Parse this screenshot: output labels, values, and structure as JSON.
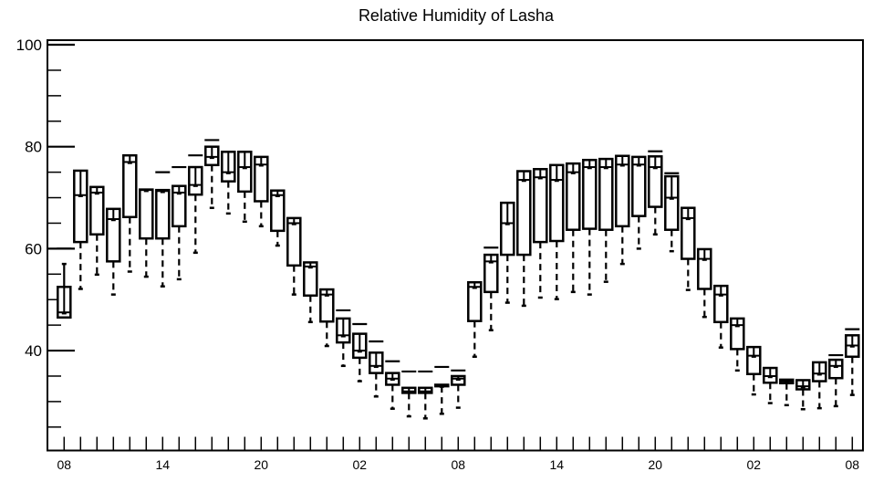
{
  "chart_data": {
    "type": "box",
    "title": "Relative Humidity of Lasha",
    "xlabel": "",
    "ylabel": "",
    "ylim": [
      20.4,
      100.9
    ],
    "yticks_major": [
      40,
      60,
      80,
      100
    ],
    "yticks_minor_step": 5,
    "x_tick_labels": [
      {
        "index": 0,
        "label": "08"
      },
      {
        "index": 6,
        "label": "14"
      },
      {
        "index": 12,
        "label": "20"
      },
      {
        "index": 18,
        "label": "02"
      },
      {
        "index": 24,
        "label": "08"
      },
      {
        "index": 30,
        "label": "14"
      },
      {
        "index": 36,
        "label": "20"
      },
      {
        "index": 42,
        "label": "02"
      },
      {
        "index": 48,
        "label": "08"
      }
    ],
    "boxes_fields": [
      "lo",
      "q1",
      "median",
      "q3",
      "hi",
      "max"
    ],
    "boxes": [
      [
        46.5,
        46.5,
        47.5,
        52.5,
        57,
        60
      ],
      [
        52.1,
        61.3,
        70.5,
        75.3,
        null,
        null
      ],
      [
        54.9,
        62.8,
        71,
        72.1,
        null,
        null
      ],
      [
        51,
        57.5,
        65.8,
        67.8,
        null,
        null
      ],
      [
        55.5,
        66.2,
        77,
        78.3,
        null,
        null
      ],
      [
        54.5,
        62,
        71.5,
        71.6,
        null,
        null
      ],
      [
        52.6,
        62,
        71.3,
        71.5,
        null,
        75
      ],
      [
        54,
        64.4,
        71,
        72.3,
        null,
        76
      ],
      [
        59.2,
        70.6,
        72.5,
        76,
        null,
        78.3
      ],
      [
        68,
        76.4,
        78,
        80,
        null,
        81.3
      ],
      [
        66.9,
        73.2,
        75,
        79,
        null,
        null
      ],
      [
        65.3,
        71.2,
        76,
        79,
        null,
        null
      ],
      [
        64.4,
        69.3,
        76.5,
        78,
        null,
        null
      ],
      [
        60.6,
        63.5,
        70.5,
        71.4,
        null,
        null
      ],
      [
        51,
        56.7,
        65,
        66,
        null,
        null
      ],
      [
        45.6,
        50.8,
        56.5,
        57.3,
        null,
        null
      ],
      [
        40.9,
        45.7,
        51,
        52,
        null,
        null
      ],
      [
        37,
        41.6,
        43,
        46.3,
        null,
        47.9
      ],
      [
        34,
        38.6,
        40,
        43.3,
        null,
        45.2
      ],
      [
        31,
        35.6,
        37,
        39.6,
        null,
        41.8
      ],
      [
        28.6,
        33.3,
        34.5,
        35.6,
        null,
        37.9
      ],
      [
        27.1,
        31.7,
        32,
        32.7,
        null,
        35.9
      ],
      [
        26.7,
        31.7,
        32,
        32.7,
        null,
        35.9
      ],
      [
        27.6,
        33,
        33.1,
        33.3,
        null,
        36.8
      ],
      [
        28.8,
        33.3,
        34.5,
        35,
        null,
        36.1
      ],
      [
        38.8,
        45.8,
        52.5,
        53.4,
        null,
        null
      ],
      [
        44,
        51.5,
        57.5,
        58.8,
        null,
        60.2
      ],
      [
        49.4,
        58.8,
        65,
        69,
        null,
        null
      ],
      [
        48.8,
        58.8,
        73.5,
        75.2,
        null,
        null
      ],
      [
        50.4,
        61.3,
        74,
        75.6,
        null,
        null
      ],
      [
        50.1,
        61.5,
        73.5,
        76.4,
        null,
        null
      ],
      [
        51.5,
        63.7,
        75,
        76.7,
        null,
        null
      ],
      [
        51,
        63.9,
        76,
        77.4,
        null,
        null
      ],
      [
        53.5,
        63.7,
        76,
        77.6,
        null,
        null
      ],
      [
        57,
        64.4,
        76.5,
        78.2,
        null,
        null
      ],
      [
        60,
        66.4,
        76.5,
        78,
        null,
        null
      ],
      [
        62.8,
        68.2,
        76,
        78.1,
        null,
        79.1
      ],
      [
        59.5,
        63.7,
        70,
        74.2,
        null,
        74.8
      ],
      [
        51.9,
        58,
        66,
        68,
        null,
        null
      ],
      [
        46.6,
        52.1,
        58,
        59.9,
        null,
        null
      ],
      [
        40.6,
        45.6,
        51,
        52.7,
        null,
        null
      ],
      [
        36.1,
        40.3,
        45,
        46.3,
        null,
        null
      ],
      [
        31.4,
        35.4,
        39,
        40.7,
        null,
        null
      ],
      [
        29.7,
        33.7,
        35,
        36.6,
        null,
        null
      ],
      [
        29.3,
        33.6,
        34,
        34.3,
        null,
        null
      ],
      [
        28.5,
        32.4,
        33,
        34.2,
        null,
        null
      ],
      [
        28.7,
        34,
        35.5,
        37.7,
        null,
        null
      ],
      [
        29.1,
        34.6,
        37,
        38.2,
        null,
        39.1
      ],
      [
        31.3,
        38.8,
        41,
        43,
        null,
        44.2
      ]
    ]
  }
}
